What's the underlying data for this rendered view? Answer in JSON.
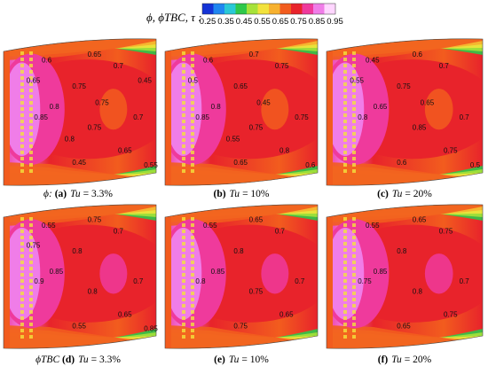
{
  "colorbar": {
    "title": "ϕ, ϕTBC, τ :",
    "ticks": [
      "0.25",
      "0.35",
      "0.45",
      "0.55",
      "0.65",
      "0.75",
      "0.85",
      "0.95"
    ],
    "colors": [
      "#1433d6",
      "#1f86f0",
      "#29c8d6",
      "#2ec84a",
      "#a6e23a",
      "#f2e23c",
      "#f7b12f",
      "#f25c1e",
      "#e8232b",
      "#ef3a9c",
      "#f07de8",
      "#ffd6ff"
    ]
  },
  "panels": [
    {
      "id": "a",
      "prefix": "ϕ:",
      "letter": "(a)",
      "tu_label": "Tu",
      "tu_value": "= 3.3%",
      "contours": [
        "0.6",
        "0.65",
        "0.7",
        "0.75",
        "0.8",
        "0.85",
        "0.75",
        "0.7",
        "0.65",
        "0.45",
        "0.55",
        "0.65",
        "0.75",
        "0.8",
        "0.45"
      ]
    },
    {
      "id": "b",
      "prefix": "",
      "letter": "(b)",
      "tu_label": "Tu",
      "tu_value": "= 10%",
      "contours": [
        "0.6",
        "0.7",
        "0.75",
        "0.65",
        "0.8",
        "0.85",
        "0.75",
        "0.75",
        "0.8",
        "0.65",
        "0.6",
        "0.5",
        "0.45",
        "0.55"
      ]
    },
    {
      "id": "c",
      "prefix": "",
      "letter": "(c)",
      "tu_label": "Tu",
      "tu_value": "= 20%",
      "contours": [
        "0.45",
        "0.6",
        "0.7",
        "0.75",
        "0.65",
        "0.8",
        "0.85",
        "0.7",
        "0.75",
        "0.6",
        "0.5",
        "0.55",
        "0.65"
      ]
    },
    {
      "id": "d",
      "prefix": "ϕTBC",
      "letter": "(d)",
      "tu_label": "Tu",
      "tu_value": "= 3.3%",
      "contours": [
        "0.55",
        "0.75",
        "0.7",
        "0.8",
        "0.85",
        "0.9",
        "0.8",
        "0.7",
        "0.65",
        "0.55",
        "0.85",
        "0.75"
      ]
    },
    {
      "id": "e",
      "prefix": "",
      "letter": "(e)",
      "tu_label": "Tu",
      "tu_value": "= 10%",
      "contours": [
        "0.55",
        "0.65",
        "0.7",
        "0.8",
        "0.85",
        "0.8",
        "0.75",
        "0.7",
        "0.65",
        "0.75"
      ]
    },
    {
      "id": "f",
      "prefix": "",
      "letter": "(f)",
      "tu_label": "Tu",
      "tu_value": "= 20%",
      "contours": [
        "0.55",
        "0.65",
        "0.75",
        "0.8",
        "0.85",
        "0.75",
        "0.8",
        "0.7",
        "0.75",
        "0.65"
      ]
    }
  ]
}
